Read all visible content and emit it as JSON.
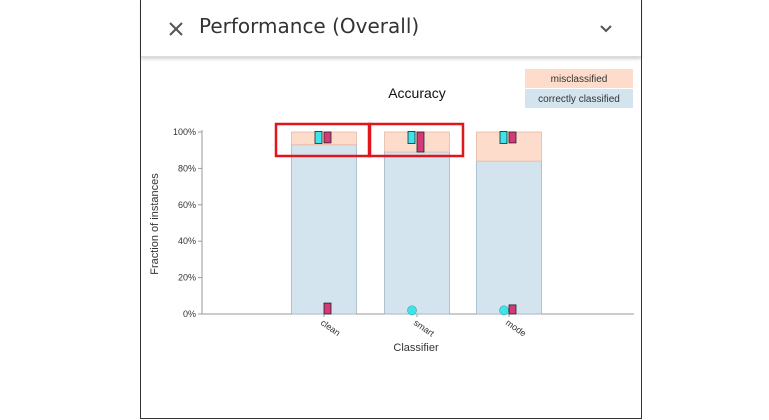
{
  "panel": {
    "title": "Performance (Overall)",
    "icons": {
      "close": "close-icon",
      "expand": "chevron-down-icon"
    }
  },
  "chart_data": {
    "type": "bar",
    "stacked": true,
    "title": "Accuracy",
    "xlabel": "Classifier",
    "ylabel": "Fraction of instances",
    "categories": [
      "clean",
      "smart",
      "mode"
    ],
    "ylim": [
      0,
      1
    ],
    "yticks": [
      "0%",
      "20%",
      "40%",
      "60%",
      "80%",
      "100%"
    ],
    "series": [
      {
        "name": "correctly classified",
        "values": [
          0.93,
          0.89,
          0.84
        ],
        "color": "#d3e4ef"
      },
      {
        "name": "misclassified",
        "values": [
          0.07,
          0.11,
          0.16
        ],
        "color": "#fddccb"
      }
    ],
    "legend": "top-right",
    "markers": {
      "cyan": {
        "color": "#3fe3ea",
        "top_values": [
          0.97,
          0.97,
          0.97
        ],
        "bottom_values": [
          null,
          0.02,
          0.02
        ]
      },
      "magenta": {
        "color": "#d6397a",
        "top_ranges": [
          [
            0.94,
            1.0
          ],
          [
            0.89,
            1.0
          ],
          [
            0.94,
            1.0
          ]
        ],
        "bottom_ranges": [
          [
            0.0,
            0.06
          ],
          null,
          [
            0.0,
            0.05
          ]
        ]
      }
    },
    "highlighted_categories": [
      "clean",
      "smart"
    ],
    "highlight_color": "#e0161c"
  }
}
